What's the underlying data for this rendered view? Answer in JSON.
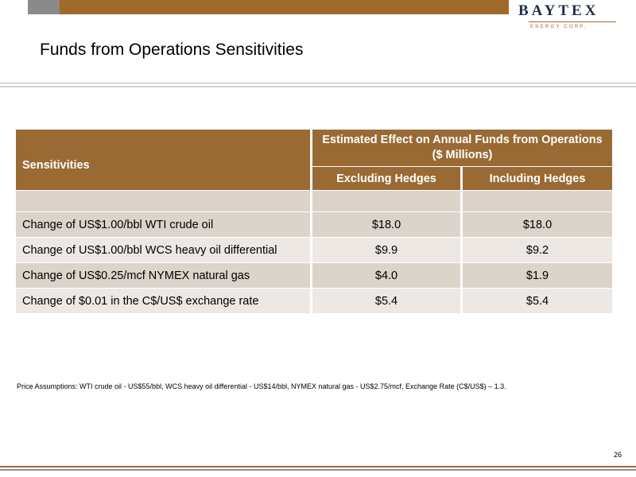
{
  "header": {
    "logo_name": "BAYTEX",
    "logo_sub": "ENERGY CORP.",
    "colors": {
      "brown": "#9a6a34",
      "gray": "#8a8a8a",
      "row_dark": "#dcd3cb",
      "row_light": "#ede8e4"
    }
  },
  "slide": {
    "title": "Funds from Operations Sensitivities",
    "page_number": "26"
  },
  "table": {
    "col_sens": "Sensitivities",
    "col_group": "Estimated Effect on Annual Funds from Operations ($ Millions)",
    "col_excl": "Excluding Hedges",
    "col_incl": "Including Hedges",
    "rows": [
      {
        "label": "Change of US$1.00/bbl WTI crude oil",
        "excl": "$18.0",
        "incl": "$18.0"
      },
      {
        "label": "Change of US$1.00/bbl WCS heavy oil differential",
        "excl": "$9.9",
        "incl": "$9.2"
      },
      {
        "label": "Change of US$0.25/mcf NYMEX natural gas",
        "excl": "$4.0",
        "incl": "$1.9"
      },
      {
        "label": "Change of $0.01 in the C$/US$ exchange rate",
        "excl": "$5.4",
        "incl": "$5.4"
      }
    ]
  },
  "footnote": "Price Assumptions:  WTI crude oil - US$55/bbl, WCS heavy oil differential - US$14/bbl, NYMEX natural gas - US$2.75/mcf, Exchange Rate (C$/US$) – 1.3."
}
